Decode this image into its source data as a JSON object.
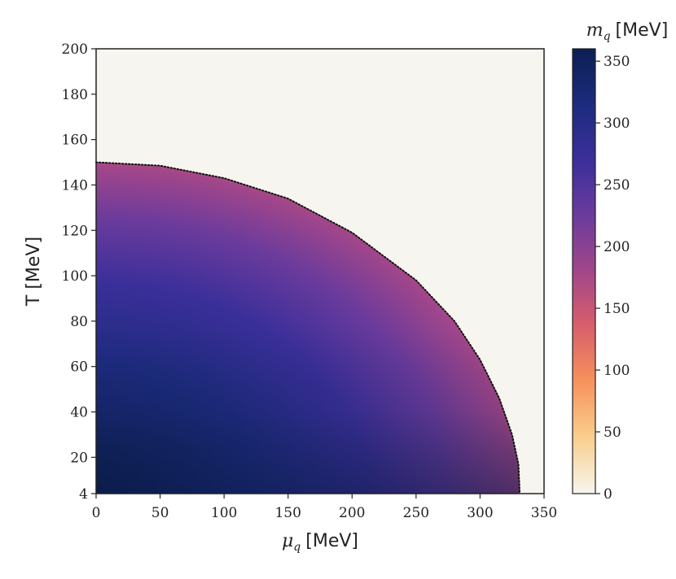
{
  "chart_data": {
    "type": "heatmap",
    "title": "",
    "xlabel": {
      "symbol": "μ",
      "sub": "q",
      "unit": "[MeV]"
    },
    "ylabel": "T [MeV]",
    "xlim": [
      0,
      350
    ],
    "ylim": [
      4,
      200
    ],
    "xticks": [
      "0",
      "50",
      "100",
      "150",
      "200",
      "250",
      "300",
      "350"
    ],
    "xtick_values": [
      0,
      50,
      100,
      150,
      200,
      250,
      300,
      350
    ],
    "yticks": [
      "4",
      "20",
      "40",
      "60",
      "80",
      "100",
      "120",
      "140",
      "160",
      "180",
      "200"
    ],
    "ytick_values": [
      4,
      20,
      40,
      60,
      80,
      100,
      120,
      140,
      160,
      180,
      200
    ],
    "colorbar": {
      "label": {
        "symbol": "m",
        "sub": "q",
        "unit": "[MeV]"
      },
      "range": [
        0,
        360
      ],
      "ticks": [
        "0",
        "50",
        "100",
        "150",
        "200",
        "250",
        "300",
        "350"
      ],
      "tick_values": [
        0,
        50,
        100,
        150,
        200,
        250,
        300,
        350
      ],
      "colormap": [
        "#f7f5ef",
        "#f9cf8f",
        "#f6935c",
        "#d95f6b",
        "#a2468a",
        "#6b3b9c",
        "#3b2f9a",
        "#1d2b7e",
        "#0c1f52"
      ]
    },
    "phase_boundary": {
      "style": "dotted",
      "color": "#111111",
      "points": [
        [
          0,
          150
        ],
        [
          50,
          148.5
        ],
        [
          100,
          143
        ],
        [
          150,
          134
        ],
        [
          200,
          119
        ],
        [
          250,
          98
        ],
        [
          280,
          80
        ],
        [
          300,
          63
        ],
        [
          315,
          46
        ],
        [
          325,
          30
        ],
        [
          330,
          17
        ],
        [
          331,
          4
        ]
      ]
    },
    "background_color": "#f7f5ef",
    "grid": false
  }
}
